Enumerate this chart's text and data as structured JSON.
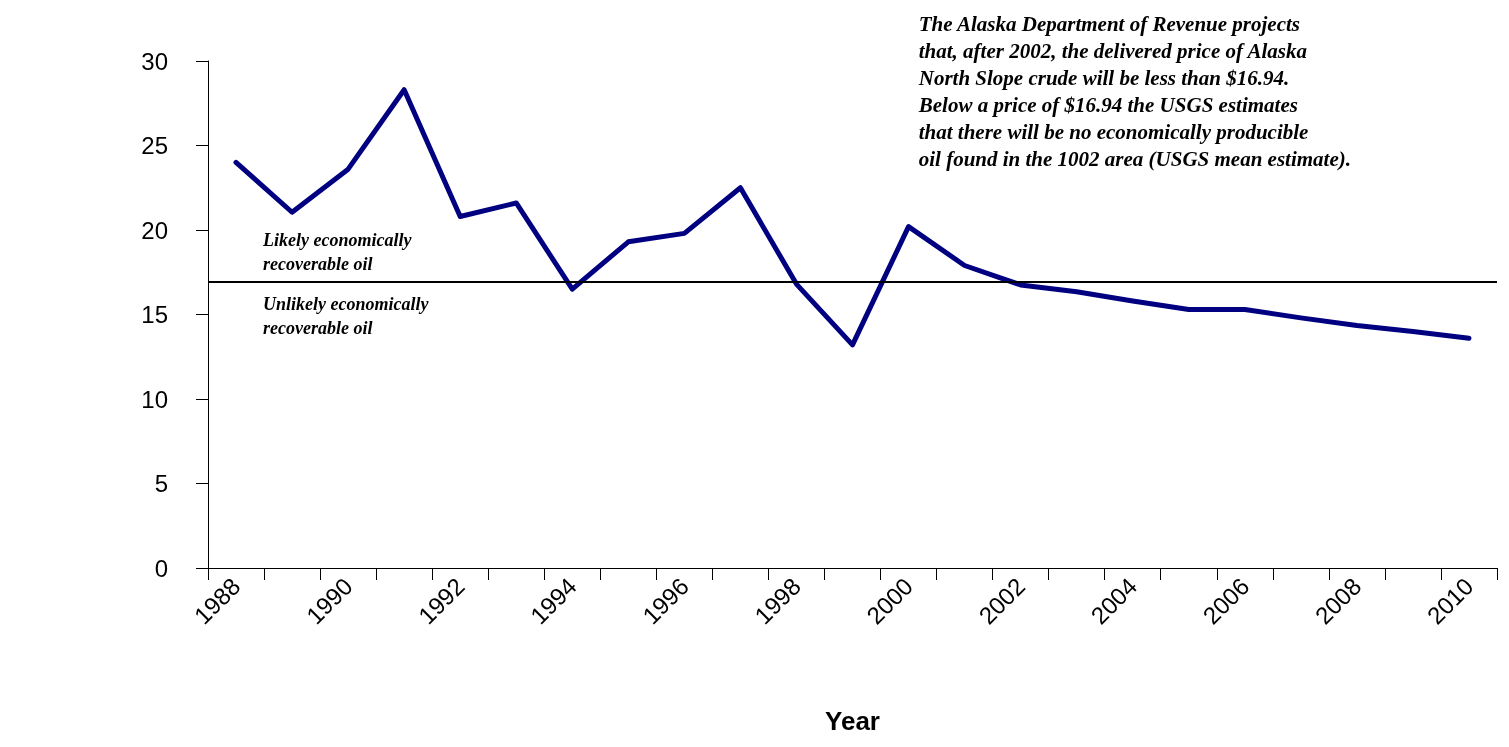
{
  "chart_data": {
    "type": "line",
    "xlabel": "Year",
    "categories": [
      "1988",
      null,
      "1990",
      null,
      "1992",
      null,
      "1994",
      null,
      "1996",
      null,
      "1998",
      null,
      "2000",
      null,
      "2002",
      null,
      "2004",
      null,
      "2006",
      null,
      "2008",
      null,
      "2010"
    ],
    "series": [
      {
        "color": "#000080",
        "values": [
          24.0,
          21.05,
          23.6,
          28.3,
          20.8,
          21.6,
          16.5,
          19.3,
          19.8,
          22.5,
          16.8,
          13.2,
          20.2,
          17.9,
          16.75,
          16.35,
          15.8,
          15.3,
          15.3,
          14.8,
          14.35,
          14.0,
          13.6
        ]
      }
    ],
    "ylim": [
      0,
      30
    ],
    "yticks": [
      0,
      5,
      10,
      15,
      20,
      25,
      30
    ],
    "grid": false,
    "marker": "none",
    "line_style": "solid",
    "ref_lines": [
      {
        "axis": "y",
        "value": 16.94,
        "color": "#000000"
      }
    ],
    "annotations": [
      "The Alaska Department of Revenue projects\nthat, after 2002, the delivered price of Alaska\nNorth Slope crude will be less than $16.94.\nBelow a price of $16.94 the USGS estimates\nthat there will be no economically producible\noil found in the 1002 area (USGS mean estimate).",
      "Likely economically\nrecoverable oil",
      "Unlikely economically\nrecoverable oil"
    ]
  }
}
